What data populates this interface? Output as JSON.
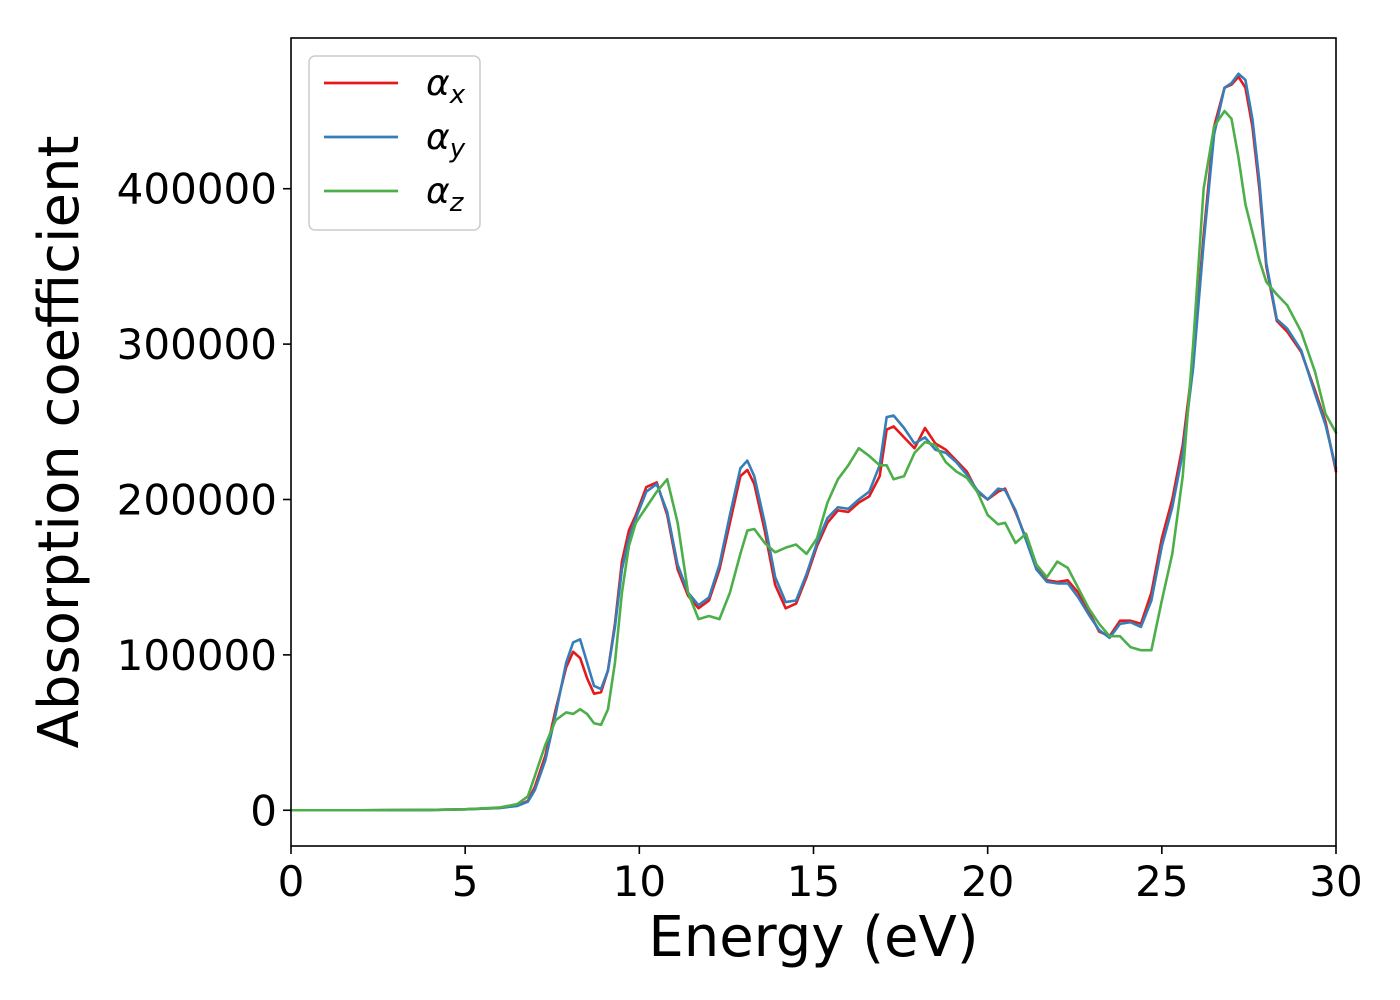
{
  "chart_data": {
    "type": "line",
    "title": "",
    "xlabel": "Energy (eV)",
    "ylabel": "Absorption coefficient",
    "xlim": [
      0,
      30
    ],
    "ylim": [
      -23000,
      497000
    ],
    "xticks": [
      0,
      5,
      10,
      15,
      20,
      25,
      30
    ],
    "xtick_labels": [
      "0",
      "5",
      "10",
      "15",
      "20",
      "25",
      "30"
    ],
    "yticks": [
      0,
      100000,
      200000,
      300000,
      400000
    ],
    "ytick_labels": [
      "0",
      "100000",
      "200000",
      "300000",
      "400000"
    ],
    "grid": false,
    "legend_position": "top-left",
    "series": [
      {
        "name": "α",
        "subscript": "x",
        "color": "#e41a1c",
        "x": [
          0,
          2,
          4,
          5,
          6,
          6.5,
          6.8,
          7.0,
          7.3,
          7.6,
          7.9,
          8.1,
          8.3,
          8.5,
          8.7,
          8.9,
          9.1,
          9.3,
          9.5,
          9.7,
          9.9,
          10.2,
          10.5,
          10.8,
          11.1,
          11.4,
          11.7,
          12.0,
          12.3,
          12.6,
          12.9,
          13.1,
          13.3,
          13.6,
          13.9,
          14.2,
          14.5,
          14.8,
          15.1,
          15.4,
          15.7,
          16.0,
          16.3,
          16.6,
          16.9,
          17.1,
          17.3,
          17.6,
          17.9,
          18.2,
          18.5,
          18.8,
          19.1,
          19.4,
          19.7,
          20.0,
          20.3,
          20.5,
          20.8,
          21.1,
          21.4,
          21.7,
          22.0,
          22.3,
          22.6,
          22.9,
          23.2,
          23.5,
          23.8,
          24.1,
          24.4,
          24.7,
          25.0,
          25.3,
          25.6,
          25.9,
          26.2,
          26.5,
          26.8,
          27.0,
          27.2,
          27.4,
          27.6,
          27.8,
          28.0,
          28.3,
          28.6,
          29.0,
          29.4,
          29.7,
          30.0
        ],
        "y": [
          0,
          0,
          200,
          600,
          1500,
          3000,
          6000,
          15000,
          35000,
          65000,
          92000,
          102000,
          98000,
          85000,
          75000,
          76000,
          90000,
          120000,
          160000,
          180000,
          190000,
          208000,
          211000,
          190000,
          155000,
          138000,
          130000,
          135000,
          155000,
          185000,
          215000,
          219000,
          210000,
          180000,
          145000,
          130000,
          133000,
          150000,
          170000,
          185000,
          193000,
          192000,
          198000,
          202000,
          215000,
          245000,
          247000,
          240000,
          233000,
          246000,
          236000,
          232000,
          225000,
          218000,
          205000,
          200000,
          205000,
          207000,
          192000,
          175000,
          158000,
          148000,
          147000,
          148000,
          140000,
          128000,
          115000,
          112000,
          122000,
          122000,
          120000,
          140000,
          175000,
          200000,
          235000,
          290000,
          370000,
          440000,
          465000,
          467000,
          472000,
          465000,
          440000,
          400000,
          350000,
          315000,
          308000,
          295000,
          270000,
          250000,
          218000
        ]
      },
      {
        "name": "α",
        "subscript": "y",
        "color": "#377eb8",
        "x": [
          0,
          2,
          4,
          5,
          6,
          6.5,
          6.8,
          7.0,
          7.3,
          7.6,
          7.9,
          8.1,
          8.3,
          8.5,
          8.7,
          8.9,
          9.1,
          9.3,
          9.5,
          9.7,
          9.9,
          10.2,
          10.5,
          10.8,
          11.1,
          11.4,
          11.7,
          12.0,
          12.3,
          12.6,
          12.9,
          13.1,
          13.3,
          13.6,
          13.9,
          14.2,
          14.5,
          14.8,
          15.1,
          15.4,
          15.7,
          16.0,
          16.3,
          16.6,
          16.9,
          17.1,
          17.3,
          17.6,
          17.9,
          18.2,
          18.5,
          18.8,
          19.1,
          19.4,
          19.7,
          20.0,
          20.3,
          20.5,
          20.8,
          21.1,
          21.4,
          21.7,
          22.0,
          22.3,
          22.6,
          22.9,
          23.2,
          23.5,
          23.8,
          24.1,
          24.4,
          24.7,
          25.0,
          25.3,
          25.6,
          25.9,
          26.2,
          26.5,
          26.8,
          27.0,
          27.2,
          27.4,
          27.6,
          27.8,
          28.0,
          28.3,
          28.6,
          29.0,
          29.4,
          29.7,
          30.0
        ],
        "y": [
          0,
          0,
          200,
          600,
          1500,
          2800,
          5500,
          13000,
          32000,
          62000,
          95000,
          108000,
          110000,
          95000,
          80000,
          78000,
          90000,
          118000,
          155000,
          175000,
          188000,
          205000,
          210000,
          192000,
          158000,
          140000,
          132000,
          137000,
          158000,
          190000,
          220000,
          225000,
          215000,
          185000,
          150000,
          134000,
          135000,
          152000,
          172000,
          188000,
          195000,
          194000,
          200000,
          205000,
          222000,
          253000,
          254000,
          246000,
          236000,
          240000,
          232000,
          230000,
          224000,
          216000,
          206000,
          200000,
          207000,
          206000,
          193000,
          174000,
          155000,
          147000,
          146000,
          146000,
          137000,
          126000,
          116000,
          111000,
          120000,
          121000,
          118000,
          135000,
          170000,
          195000,
          230000,
          285000,
          365000,
          435000,
          465000,
          468000,
          474000,
          470000,
          445000,
          405000,
          352000,
          316000,
          310000,
          296000,
          268000,
          248000,
          220000
        ]
      },
      {
        "name": "α",
        "subscript": "z",
        "color": "#4daf4a",
        "x": [
          0,
          2,
          4,
          5,
          6,
          6.5,
          6.8,
          7.0,
          7.3,
          7.6,
          7.9,
          8.1,
          8.3,
          8.5,
          8.7,
          8.9,
          9.1,
          9.3,
          9.5,
          9.7,
          9.9,
          10.2,
          10.5,
          10.8,
          11.1,
          11.4,
          11.7,
          12.0,
          12.3,
          12.6,
          12.9,
          13.1,
          13.3,
          13.6,
          13.9,
          14.2,
          14.5,
          14.8,
          15.1,
          15.4,
          15.7,
          16.0,
          16.3,
          16.6,
          16.9,
          17.1,
          17.3,
          17.6,
          17.9,
          18.2,
          18.5,
          18.8,
          19.1,
          19.4,
          19.7,
          20.0,
          20.3,
          20.5,
          20.8,
          21.1,
          21.4,
          21.7,
          22.0,
          22.3,
          22.6,
          22.9,
          23.2,
          23.5,
          23.8,
          24.1,
          24.4,
          24.7,
          25.0,
          25.3,
          25.6,
          25.9,
          26.2,
          26.5,
          26.8,
          27.0,
          27.2,
          27.4,
          27.6,
          27.8,
          28.0,
          28.3,
          28.6,
          29.0,
          29.4,
          29.7,
          30.0
        ],
        "y": [
          0,
          0,
          200,
          600,
          1800,
          4000,
          9000,
          22000,
          42000,
          58000,
          63000,
          62000,
          65000,
          62000,
          56000,
          55000,
          65000,
          95000,
          140000,
          170000,
          185000,
          195000,
          205000,
          213000,
          185000,
          140000,
          123000,
          125000,
          123000,
          140000,
          165000,
          180000,
          181000,
          172000,
          166000,
          169000,
          171000,
          165000,
          175000,
          198000,
          213000,
          222000,
          233000,
          228000,
          222000,
          222000,
          213000,
          215000,
          230000,
          237000,
          235000,
          224000,
          218000,
          214000,
          205000,
          190000,
          184000,
          185000,
          172000,
          178000,
          158000,
          150000,
          160000,
          156000,
          143000,
          130000,
          120000,
          112000,
          112000,
          105000,
          103000,
          103000,
          135000,
          165000,
          215000,
          300000,
          400000,
          440000,
          450000,
          445000,
          420000,
          390000,
          372000,
          354000,
          340000,
          332000,
          325000,
          308000,
          282000,
          255000,
          243000
        ]
      }
    ]
  }
}
